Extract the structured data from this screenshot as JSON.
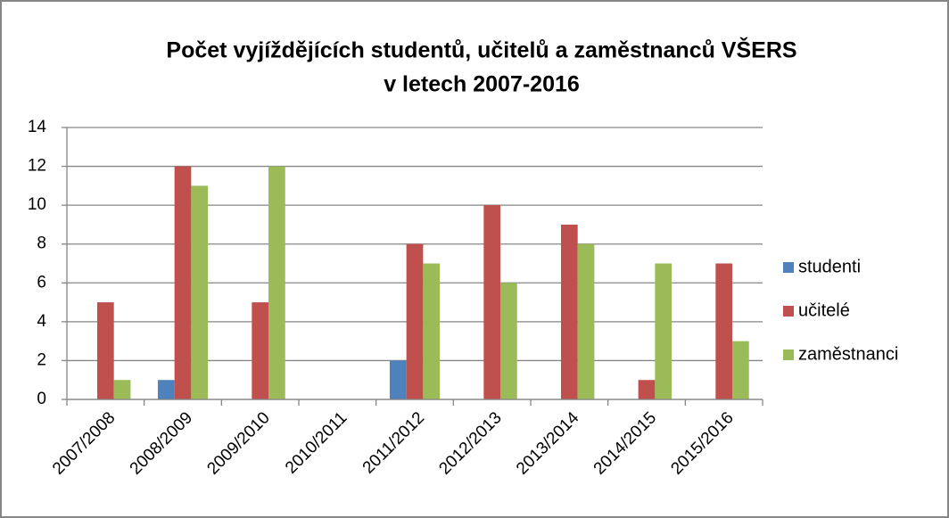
{
  "chart_data": {
    "type": "bar",
    "title": [
      "Počet vyjíždějících studentů, učitelů a zaměstnanců VŠERS",
      "v letech 2007-2016"
    ],
    "categories": [
      "2007/2008",
      "2008/2009",
      "2009/2010",
      "2010/2011",
      "2011/2012",
      "2012/2013",
      "2013/2014",
      "2014/2015",
      "2015/2016"
    ],
    "series": [
      {
        "name": "studenti",
        "color": "#4f81bd",
        "values": [
          0,
          1,
          0,
          0,
          2,
          0,
          0,
          0,
          0
        ]
      },
      {
        "name": "učitelé",
        "color": "#c0504d",
        "values": [
          5,
          12,
          5,
          0,
          8,
          10,
          9,
          1,
          7
        ]
      },
      {
        "name": "zaměstnanci",
        "color": "#9bbb59",
        "values": [
          1,
          11,
          12,
          0,
          7,
          6,
          8,
          7,
          3
        ]
      }
    ],
    "ylim": [
      0,
      14
    ],
    "yticks": [
      0,
      2,
      4,
      6,
      8,
      10,
      12,
      14
    ],
    "grid": true,
    "legend": "right"
  }
}
